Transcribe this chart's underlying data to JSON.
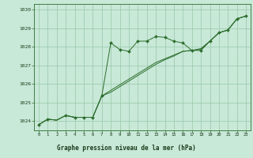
{
  "title": "Graphe pression niveau de la mer (hPa)",
  "bg_color": "#c8e8d8",
  "plot_bg_color": "#c8e8d8",
  "grid_color": "#98c8a8",
  "line_color": "#2d6e2d",
  "title_bg": "#98c8a8",
  "xlim": [
    -0.5,
    23.5
  ],
  "ylim": [
    1023.5,
    1030.3
  ],
  "xticks": [
    0,
    1,
    2,
    3,
    4,
    5,
    6,
    7,
    8,
    9,
    10,
    11,
    12,
    13,
    14,
    15,
    16,
    17,
    18,
    19,
    20,
    21,
    22,
    23
  ],
  "yticks": [
    1024,
    1025,
    1026,
    1027,
    1028,
    1029,
    1030
  ],
  "series1_x": [
    0,
    1,
    2,
    3,
    4,
    5,
    6,
    7,
    8,
    9,
    10,
    11,
    12,
    13,
    14,
    15,
    16,
    17,
    18,
    19,
    20,
    21,
    22,
    23
  ],
  "series1_y": [
    1023.8,
    1024.1,
    1024.05,
    1024.3,
    1024.2,
    1024.2,
    1024.2,
    1025.35,
    1028.2,
    1027.85,
    1027.75,
    1028.3,
    1028.3,
    1028.55,
    1028.5,
    1028.3,
    1028.2,
    1027.8,
    1027.8,
    1028.3,
    1028.75,
    1028.9,
    1029.5,
    1029.65
  ],
  "series2_x": [
    0,
    1,
    2,
    3,
    4,
    5,
    6,
    7,
    8,
    9,
    10,
    11,
    12,
    13,
    14,
    15,
    16,
    17,
    18,
    19,
    20,
    21,
    22,
    23
  ],
  "series2_y": [
    1023.8,
    1024.1,
    1024.05,
    1024.3,
    1024.2,
    1024.2,
    1024.2,
    1025.35,
    1025.55,
    1025.85,
    1026.15,
    1026.45,
    1026.75,
    1027.05,
    1027.3,
    1027.5,
    1027.75,
    1027.8,
    1027.85,
    1028.3,
    1028.75,
    1028.9,
    1029.5,
    1029.65
  ],
  "series3_x": [
    0,
    1,
    2,
    3,
    4,
    5,
    6,
    7,
    8,
    9,
    10,
    11,
    12,
    13,
    14,
    15,
    16,
    17,
    18,
    19,
    20,
    21,
    22,
    23
  ],
  "series3_y": [
    1023.8,
    1024.1,
    1024.05,
    1024.3,
    1024.2,
    1024.2,
    1024.2,
    1025.35,
    1025.65,
    1025.95,
    1026.25,
    1026.55,
    1026.85,
    1027.15,
    1027.35,
    1027.55,
    1027.75,
    1027.8,
    1027.9,
    1028.3,
    1028.75,
    1028.9,
    1029.5,
    1029.65
  ],
  "marker_x": [
    0,
    1,
    3,
    4,
    5,
    6,
    7,
    8,
    9,
    10,
    11,
    12,
    13,
    14,
    15,
    16,
    17,
    18,
    19,
    20,
    21,
    22,
    23
  ],
  "marker_y": [
    1023.8,
    1024.1,
    1024.3,
    1024.2,
    1024.2,
    1024.2,
    1025.35,
    1028.2,
    1027.85,
    1027.75,
    1028.3,
    1028.3,
    1028.55,
    1028.5,
    1028.3,
    1028.2,
    1027.8,
    1027.8,
    1028.3,
    1028.75,
    1028.9,
    1029.5,
    1029.65
  ]
}
